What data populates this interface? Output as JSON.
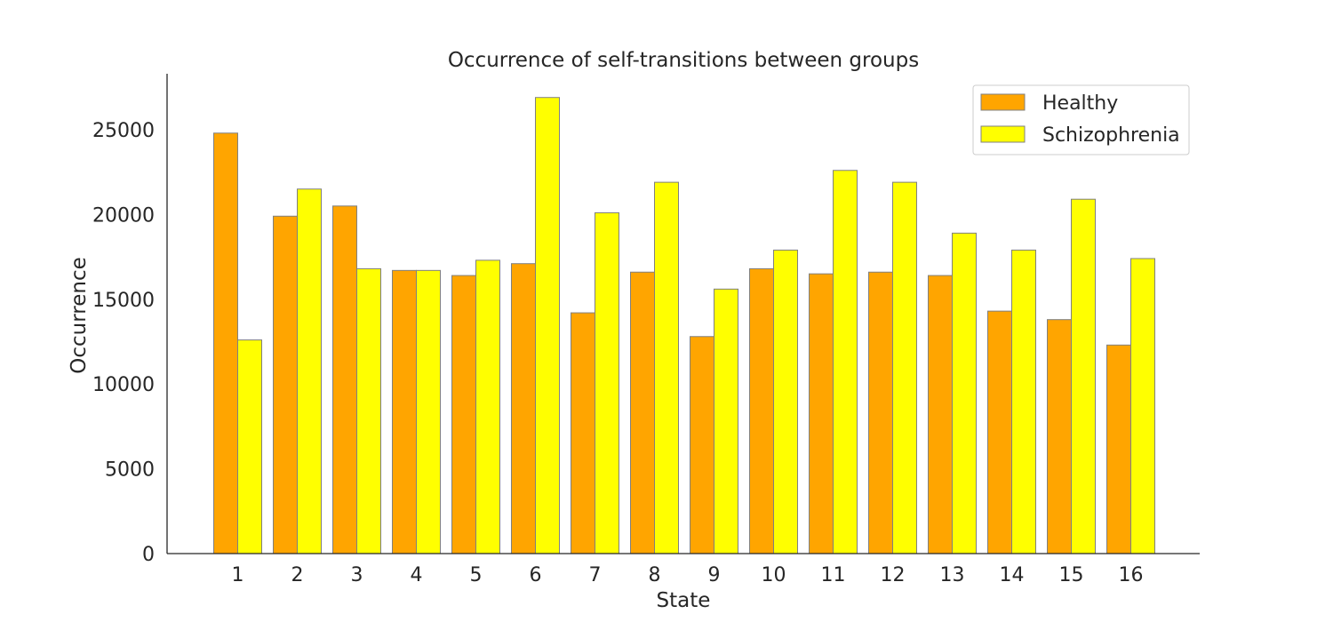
{
  "chart_data": {
    "type": "bar",
    "title": "Occurrence of self-transitions between groups",
    "xlabel": "State",
    "ylabel": "Occurrence",
    "categories": [
      "1",
      "2",
      "3",
      "4",
      "5",
      "6",
      "7",
      "8",
      "9",
      "10",
      "11",
      "12",
      "13",
      "14",
      "15",
      "16"
    ],
    "series": [
      {
        "name": "Healthy",
        "color": "#ffa500",
        "values": [
          24800,
          19900,
          20500,
          16700,
          16400,
          17100,
          14200,
          16600,
          12800,
          16800,
          16500,
          16600,
          16400,
          14300,
          13800,
          12300
        ]
      },
      {
        "name": "Schizophrenia",
        "color": "#ffff00",
        "values": [
          12600,
          21500,
          16800,
          16700,
          17300,
          26900,
          20100,
          21900,
          15600,
          17900,
          22600,
          21900,
          18900,
          17900,
          20900,
          17400
        ]
      }
    ],
    "ylim": [
      0,
      28300
    ],
    "yticks": [
      0,
      5000,
      10000,
      15000,
      20000,
      25000
    ],
    "grid": false,
    "legend_position": "top-right"
  }
}
